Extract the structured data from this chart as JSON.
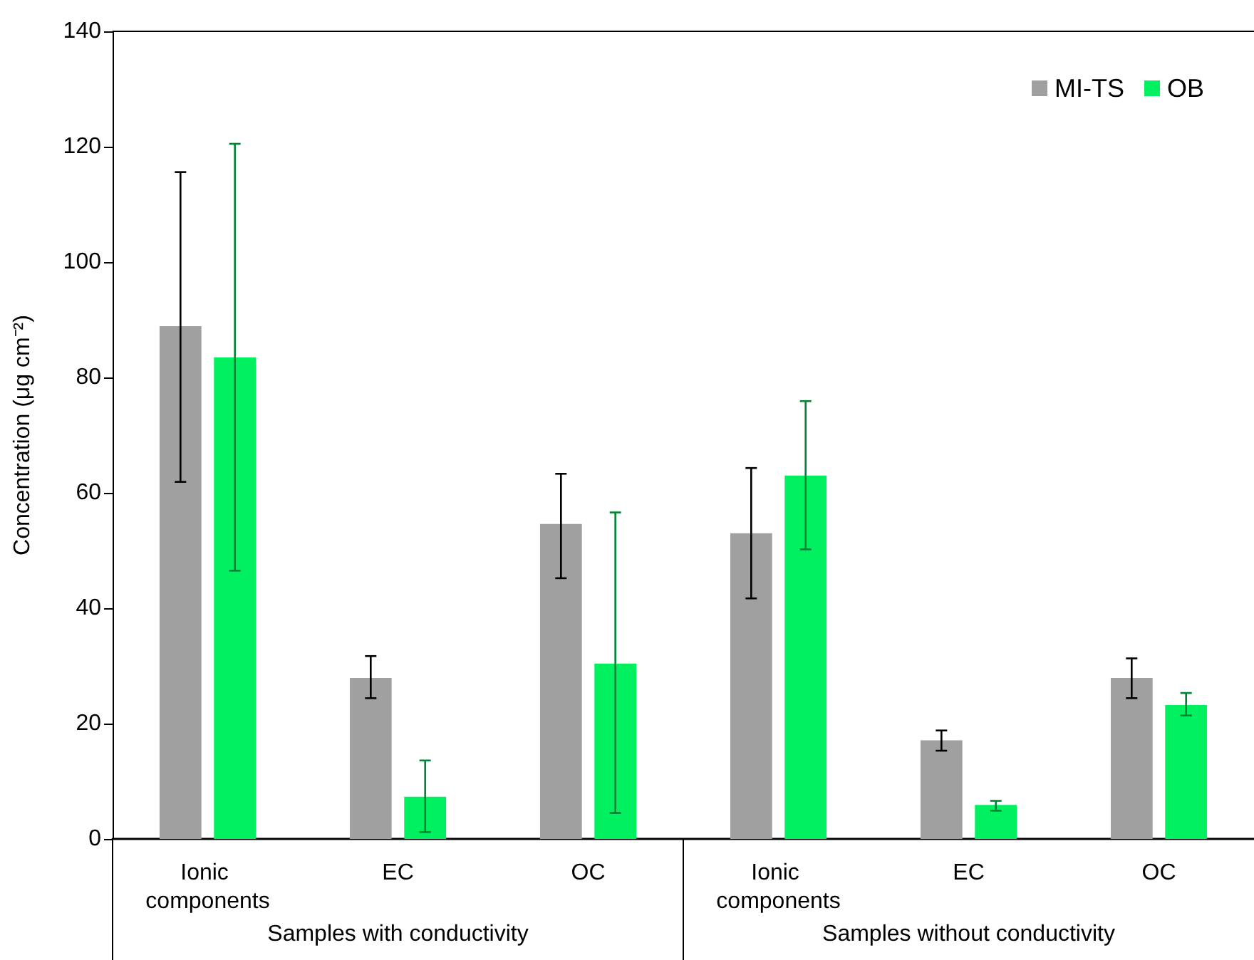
{
  "chart_data": {
    "type": "bar",
    "ylabel": "Concentration (μg cm⁻²)",
    "categories": [
      "Ionic components",
      "EC",
      "OC",
      "Ionic components",
      "EC",
      "OC"
    ],
    "series": [
      {
        "name": "MI-TS",
        "color": "#a0a0a0",
        "values": [
          88.9,
          27.9,
          54.6,
          53.0,
          17.1,
          27.9
        ],
        "errors": [
          [
            61.9,
            115.6
          ],
          [
            24.4,
            31.7
          ],
          [
            45.2,
            63.3
          ],
          [
            41.7,
            64.3
          ],
          [
            15.3,
            18.8
          ],
          [
            24.4,
            31.3
          ]
        ]
      },
      {
        "name": "OB",
        "color": "#00f060",
        "values": [
          83.5,
          7.3,
          30.4,
          63.0,
          5.9,
          23.2
        ],
        "errors": [
          [
            46.5,
            120.5
          ],
          [
            1.2,
            13.6
          ],
          [
            4.5,
            56.6
          ],
          [
            50.2,
            75.9
          ],
          [
            4.9,
            6.6
          ],
          [
            21.4,
            25.3
          ]
        ]
      }
    ],
    "annotations": [
      "Samples with conductivity",
      "Samples without conductivity"
    ],
    "ylim": [
      0,
      140
    ],
    "yticks": [
      0,
      20,
      40,
      60,
      80,
      100,
      120,
      140
    ],
    "grid": false,
    "legend": "top right"
  }
}
